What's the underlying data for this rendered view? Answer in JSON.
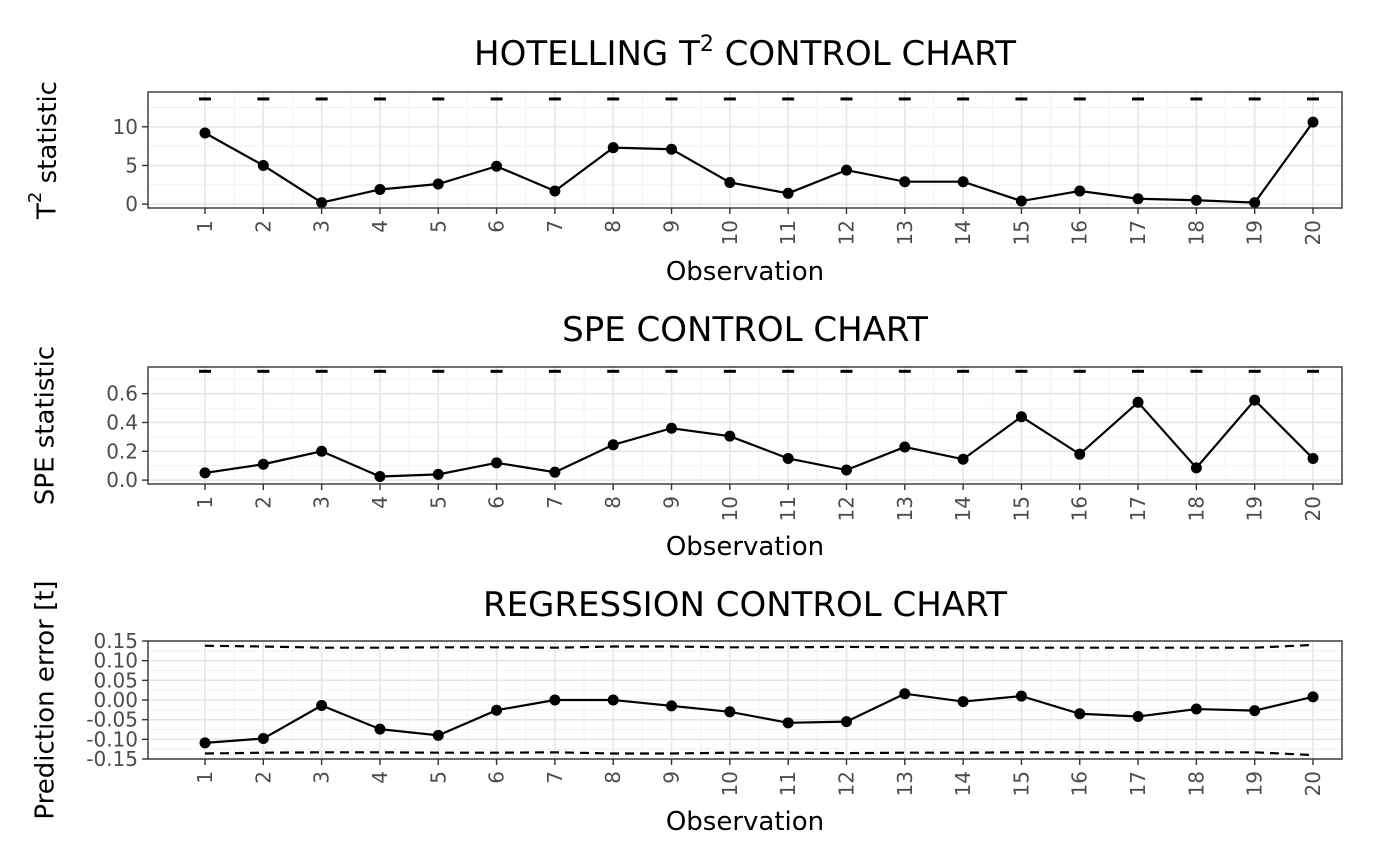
{
  "chart_data": [
    {
      "type": "line",
      "title": "HOTELLING T",
      "title_superscript": "2",
      "title_suffix": " CONTROL CHART",
      "xlabel": "Observation",
      "ylabel": "T",
      "ylabel_superscript": "2",
      "ylabel_suffix": " statistic",
      "categories": [
        "1",
        "2",
        "3",
        "4",
        "5",
        "6",
        "7",
        "8",
        "9",
        "10",
        "11",
        "12",
        "13",
        "14",
        "15",
        "16",
        "17",
        "18",
        "19",
        "20"
      ],
      "yticks": [
        "0",
        "5",
        "10"
      ],
      "ylim": [
        -0.5,
        14.5
      ],
      "series": [
        {
          "values": [
            9.2,
            5.0,
            0.2,
            1.9,
            2.6,
            4.9,
            1.7,
            7.3,
            7.1,
            2.8,
            1.4,
            4.4,
            2.9,
            2.9,
            0.4,
            1.7,
            0.7,
            0.5,
            0.2,
            10.6
          ]
        }
      ],
      "limit_upper": [
        13.6,
        13.6,
        13.6,
        13.6,
        13.6,
        13.6,
        13.6,
        13.6,
        13.6,
        13.6,
        13.6,
        13.6,
        13.6,
        13.6,
        13.6,
        13.6,
        13.6,
        13.6,
        13.6,
        13.6
      ],
      "limit_style": "dashed",
      "grid": true
    },
    {
      "type": "line",
      "title": "SPE CONTROL CHART",
      "xlabel": "Observation",
      "ylabel": "SPE statistic",
      "categories": [
        "1",
        "2",
        "3",
        "4",
        "5",
        "6",
        "7",
        "8",
        "9",
        "10",
        "11",
        "12",
        "13",
        "14",
        "15",
        "16",
        "17",
        "18",
        "19",
        "20"
      ],
      "yticks": [
        "0.0",
        "0.2",
        "0.4",
        "0.6"
      ],
      "ylim": [
        -0.027,
        0.785
      ],
      "series": [
        {
          "values": [
            0.05,
            0.11,
            0.2,
            0.025,
            0.04,
            0.12,
            0.055,
            0.245,
            0.36,
            0.305,
            0.15,
            0.07,
            0.23,
            0.145,
            0.44,
            0.18,
            0.54,
            0.085,
            0.555,
            0.15
          ]
        }
      ],
      "limit_upper": [
        0.755,
        0.755,
        0.755,
        0.755,
        0.755,
        0.755,
        0.755,
        0.755,
        0.755,
        0.755,
        0.755,
        0.755,
        0.755,
        0.755,
        0.755,
        0.755,
        0.755,
        0.755,
        0.755,
        0.755
      ],
      "limit_style": "dashed",
      "grid": true
    },
    {
      "type": "line",
      "title": "REGRESSION CONTROL CHART",
      "xlabel": "Observation",
      "ylabel": "Prediction error [t]",
      "categories": [
        "1",
        "2",
        "3",
        "4",
        "5",
        "6",
        "7",
        "8",
        "9",
        "10",
        "11",
        "12",
        "13",
        "14",
        "15",
        "16",
        "17",
        "18",
        "19",
        "20"
      ],
      "yticks": [
        "-0.15",
        "-0.10",
        "-0.05",
        "0.00",
        "0.05",
        "0.10",
        "0.15"
      ],
      "ylim": [
        -0.15,
        0.15
      ],
      "series": [
        {
          "values": [
            -0.109,
            -0.098,
            -0.014,
            -0.074,
            -0.09,
            -0.026,
            0.0,
            0.0,
            -0.015,
            -0.03,
            -0.058,
            -0.055,
            0.016,
            -0.004,
            0.01,
            -0.035,
            -0.042,
            -0.023,
            -0.027,
            0.008
          ]
        }
      ],
      "limit_upper": [
        0.138,
        0.136,
        0.133,
        0.133,
        0.134,
        0.134,
        0.133,
        0.136,
        0.136,
        0.134,
        0.134,
        0.135,
        0.134,
        0.134,
        0.133,
        0.133,
        0.133,
        0.133,
        0.133,
        0.14
      ],
      "limit_lower": [
        -0.136,
        -0.134,
        -0.133,
        -0.133,
        -0.134,
        -0.134,
        -0.133,
        -0.136,
        -0.136,
        -0.134,
        -0.134,
        -0.135,
        -0.134,
        -0.134,
        -0.133,
        -0.133,
        -0.133,
        -0.133,
        -0.133,
        -0.14
      ],
      "limit_style": "dashed",
      "grid": true
    }
  ]
}
